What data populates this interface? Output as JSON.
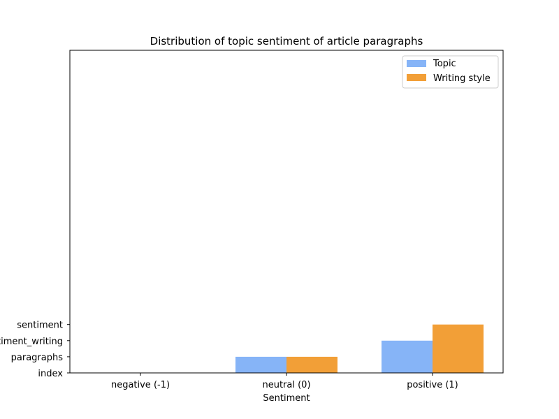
{
  "chart_data": {
    "type": "bar",
    "title": "Distribution of topic sentiment of article paragraphs",
    "xlabel": "Sentiment",
    "ylabel": "",
    "categories": [
      "negative (-1)",
      "neutral (0)",
      "positive (1)"
    ],
    "y_categories": [
      "index",
      "paragraphs",
      "sentiment_writing",
      "sentiment"
    ],
    "series": [
      {
        "name": "Topic",
        "color": "#86b4f7",
        "values": [
          0,
          1,
          2
        ]
      },
      {
        "name": "Writing style",
        "color": "#f29f37",
        "values": [
          0,
          1,
          3
        ]
      }
    ],
    "ylim": [
      0,
      20
    ],
    "grid": false,
    "legend_position": "top-right"
  }
}
